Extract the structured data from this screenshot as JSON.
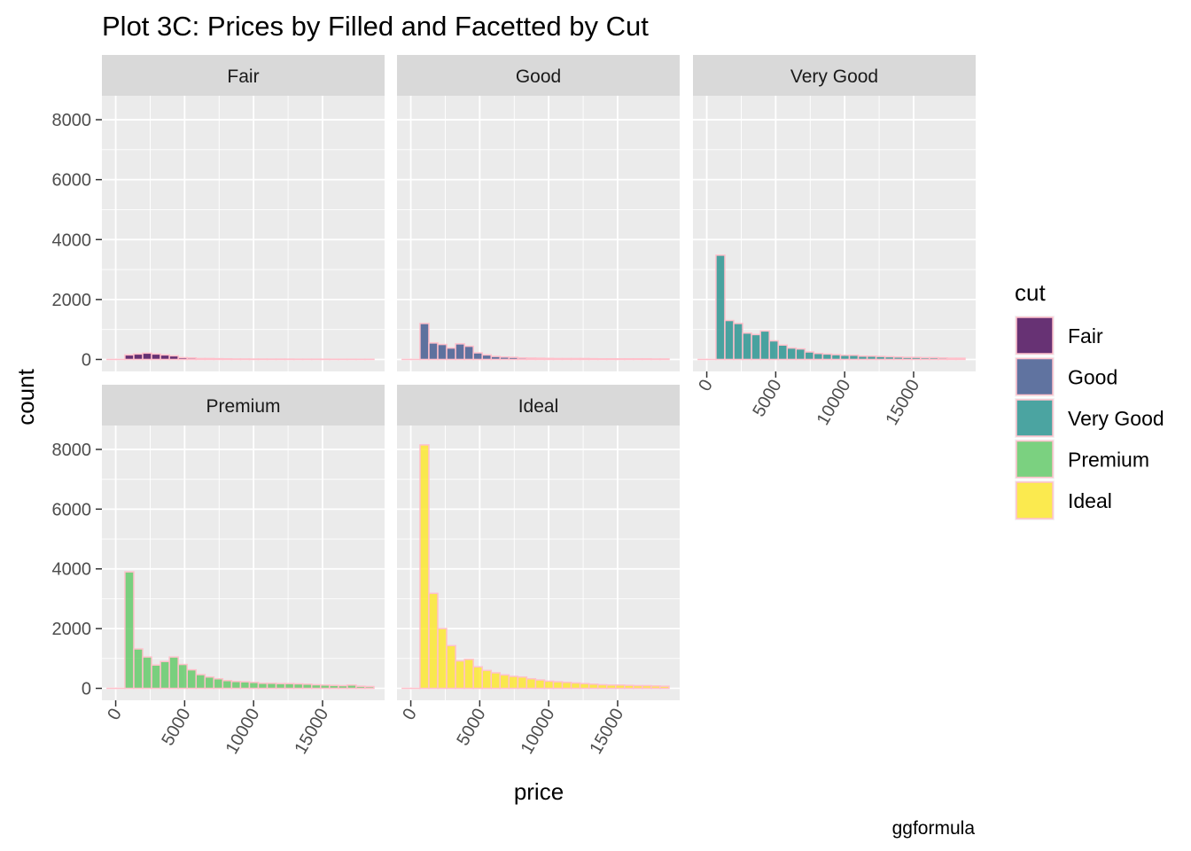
{
  "chart_data": {
    "type": "bar",
    "title": "Plot 3C: Prices by Filled and Facetted by Cut",
    "xlabel": "price",
    "ylabel": "count",
    "caption": "ggformula",
    "xlim": [
      -1000,
      19500
    ],
    "ylim": [
      -400,
      8800
    ],
    "x_ticks": [
      0,
      5000,
      10000,
      15000
    ],
    "x_tick_labels": [
      "0",
      "5000",
      "10000",
      "15000"
    ],
    "y_ticks": [
      0,
      2000,
      4000,
      6000,
      8000
    ],
    "y_tick_labels": [
      "0",
      "2000",
      "4000",
      "6000",
      "8000"
    ],
    "bin_centers": [
      -300,
      345,
      990,
      1635,
      2280,
      2925,
      3570,
      4215,
      4860,
      5505,
      6150,
      6795,
      7440,
      8085,
      8730,
      9375,
      10020,
      10665,
      11310,
      11955,
      12600,
      13245,
      13890,
      14535,
      15180,
      15825,
      16470,
      17115,
      17760,
      18405
    ],
    "bin_width": 645,
    "bar_outline_color": "#ffc0cb",
    "legend": {
      "title": "cut",
      "position": "right",
      "entries": [
        "Fair",
        "Good",
        "Very Good",
        "Premium",
        "Ideal"
      ]
    },
    "facets": [
      {
        "label": "Fair",
        "color": "#440154",
        "values": [
          0,
          0,
          150,
          180,
          210,
          180,
          150,
          120,
          60,
          50,
          30,
          30,
          25,
          20,
          15,
          15,
          12,
          12,
          10,
          10,
          10,
          8,
          8,
          8,
          8,
          6,
          6,
          6,
          5,
          5
        ]
      },
      {
        "label": "Good",
        "color": "#3b528b",
        "values": [
          0,
          0,
          1200,
          550,
          500,
          380,
          520,
          440,
          220,
          150,
          100,
          80,
          70,
          50,
          45,
          40,
          35,
          30,
          30,
          30,
          30,
          25,
          20,
          20,
          20,
          20,
          20,
          20,
          15,
          15
        ]
      },
      {
        "label": "Very Good",
        "color": "#21908c",
        "values": [
          0,
          0,
          3480,
          1300,
          1200,
          880,
          830,
          950,
          620,
          480,
          380,
          350,
          250,
          200,
          180,
          160,
          140,
          140,
          110,
          110,
          100,
          90,
          80,
          70,
          70,
          60,
          60,
          50,
          40,
          40
        ]
      },
      {
        "label": "Premium",
        "color": "#5dc863",
        "values": [
          0,
          0,
          3900,
          1320,
          1050,
          780,
          900,
          1050,
          800,
          620,
          460,
          380,
          320,
          260,
          230,
          220,
          200,
          170,
          170,
          160,
          160,
          150,
          140,
          120,
          110,
          100,
          90,
          110,
          70,
          60
        ]
      },
      {
        "label": "Ideal",
        "color": "#fde725",
        "values": [
          0,
          0,
          8150,
          3180,
          2000,
          1430,
          920,
          970,
          720,
          600,
          520,
          450,
          400,
          380,
          320,
          280,
          240,
          220,
          200,
          180,
          160,
          140,
          120,
          110,
          110,
          100,
          90,
          90,
          80,
          70
        ]
      }
    ]
  }
}
